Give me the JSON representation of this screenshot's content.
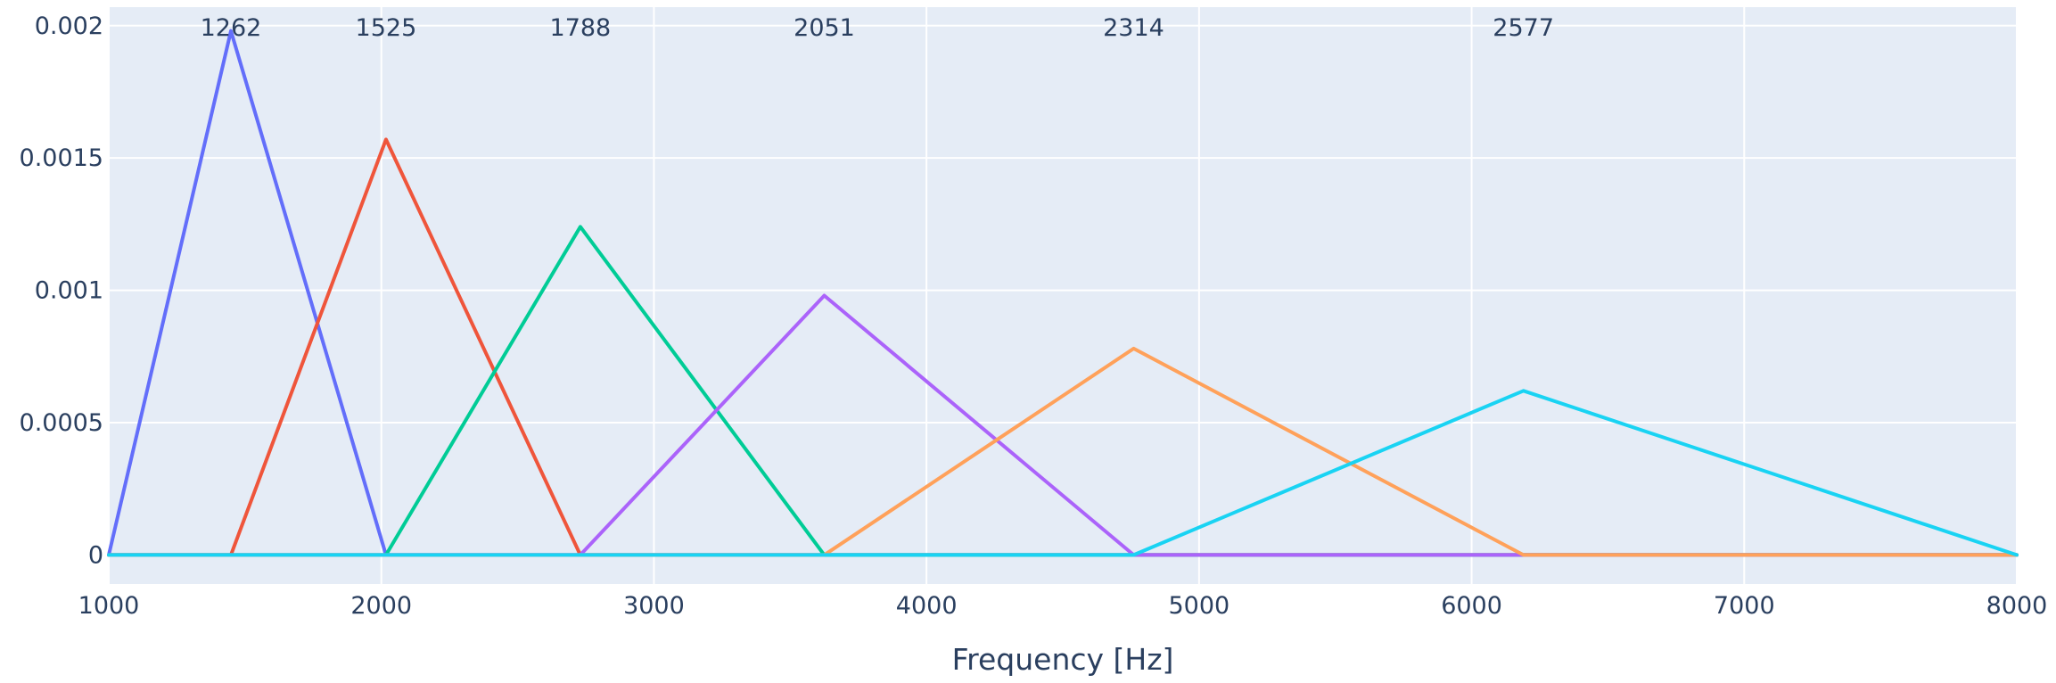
{
  "chart_data": {
    "type": "line",
    "title": "",
    "xlabel": "Frequency [Hz]",
    "ylabel": "",
    "xlim": [
      1000,
      8000
    ],
    "ylim": [
      -0.00011,
      0.00207
    ],
    "x_ticks": [
      1000,
      2000,
      3000,
      4000,
      5000,
      6000,
      7000,
      8000
    ],
    "y_ticks": [
      0,
      0.0005,
      0.001,
      0.0015,
      0.002
    ],
    "y_tick_labels": [
      "0",
      "0.0005",
      "0.001",
      "0.0015",
      "0.002"
    ],
    "grid": true,
    "legend": "none",
    "plot_bgcolor": "#e5ecf6",
    "series": [
      {
        "color": "#636efa",
        "x": [
          1000,
          1448,
          2017,
          8000
        ],
        "y": [
          0,
          0.00198,
          0,
          0
        ]
      },
      {
        "color": "#ef553b",
        "x": [
          1000,
          1448,
          2017,
          2730,
          8000
        ],
        "y": [
          0,
          0,
          0.00157,
          0,
          0
        ]
      },
      {
        "color": "#00cc96",
        "x": [
          1000,
          2017,
          2730,
          3625,
          8000
        ],
        "y": [
          0,
          0,
          0.00124,
          0,
          0
        ]
      },
      {
        "color": "#ab63fa",
        "x": [
          1000,
          2730,
          3625,
          4760,
          8000
        ],
        "y": [
          0,
          0,
          0.00098,
          0,
          0
        ]
      },
      {
        "color": "#ffa15a",
        "x": [
          1000,
          3625,
          4760,
          6190,
          8000
        ],
        "y": [
          0,
          0,
          0.00078,
          0,
          0
        ]
      },
      {
        "color": "#19d3f3",
        "x": [
          1000,
          4760,
          6190,
          8000
        ],
        "y": [
          0,
          0,
          0.00062,
          0
        ]
      }
    ],
    "annotations": [
      {
        "text": "1262",
        "x": 1448
      },
      {
        "text": "1525",
        "x": 2017
      },
      {
        "text": "1788",
        "x": 2730
      },
      {
        "text": "2051",
        "x": 3625
      },
      {
        "text": "2314",
        "x": 4760
      },
      {
        "text": "2577",
        "x": 6190
      }
    ]
  }
}
